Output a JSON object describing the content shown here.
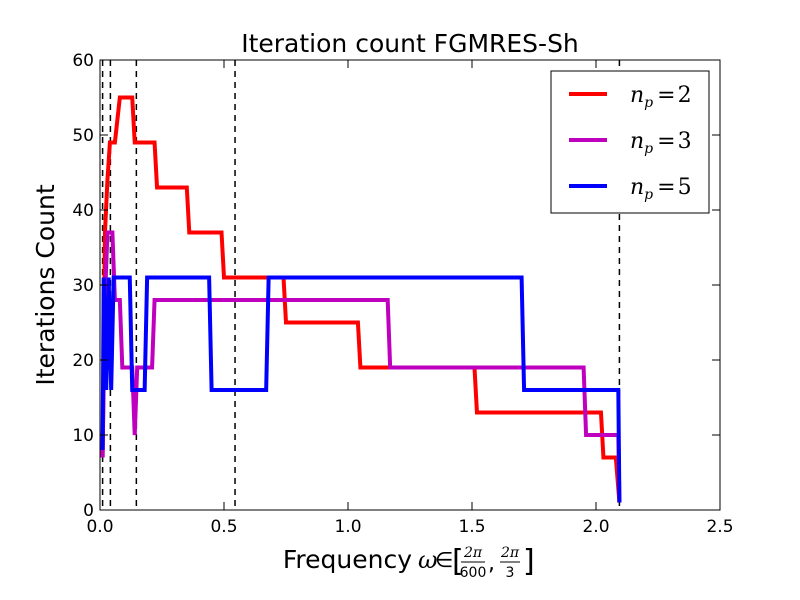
{
  "chart_data": {
    "type": "line",
    "title": "Iteration count FGMRES-Sh",
    "xlabel": "Frequency",
    "xlabel_math": {
      "symbol": "ω",
      "member": "∈",
      "lower_num": "2π",
      "lower_den": "600",
      "upper_num": "2π",
      "upper_den": "3"
    },
    "ylabel": "Iterations Count",
    "xlim": [
      0,
      2.5
    ],
    "ylim": [
      0,
      60
    ],
    "xticks": [
      "0.0",
      "0.5",
      "1.0",
      "1.5",
      "2.0",
      "2.5"
    ],
    "xtick_values": [
      0,
      0.5,
      1.0,
      1.5,
      2.0,
      2.5
    ],
    "yticks": [
      "0",
      "10",
      "20",
      "30",
      "40",
      "50",
      "60"
    ],
    "ytick_values": [
      0,
      10,
      20,
      30,
      40,
      50,
      60
    ],
    "grid": false,
    "legend_position": "top-right",
    "vlines": [
      0.0105,
      0.0419,
      0.1466,
      0.5445,
      2.0944
    ],
    "series": [
      {
        "name_base": "n",
        "name_sub": "p",
        "name_value": "2",
        "color": "#ff0000",
        "x": [
          0.0105,
          0.02,
          0.03,
          0.04,
          0.06,
          0.08,
          0.09,
          0.13,
          0.14,
          0.22,
          0.23,
          0.35,
          0.36,
          0.49,
          0.5,
          0.74,
          0.75,
          1.04,
          1.05,
          1.51,
          1.52,
          2.02,
          2.03,
          2.07,
          2.08,
          2.0944
        ],
        "y": [
          7,
          37,
          44,
          49,
          49,
          55,
          55,
          55,
          49,
          49,
          43,
          43,
          37,
          37,
          31,
          31,
          25,
          25,
          19,
          19,
          13,
          13,
          7,
          7,
          7,
          1
        ]
      },
      {
        "name_base": "n",
        "name_sub": "p",
        "name_value": "3",
        "color": "#bf00bf",
        "x": [
          0.0105,
          0.02,
          0.03,
          0.05,
          0.06,
          0.08,
          0.09,
          0.13,
          0.14,
          0.15,
          0.16,
          0.21,
          0.22,
          1.16,
          1.17,
          1.95,
          1.96,
          2.09,
          2.0944
        ],
        "y": [
          7,
          28,
          37,
          37,
          28,
          28,
          19,
          19,
          10,
          19,
          19,
          19,
          28,
          28,
          19,
          19,
          10,
          10,
          1
        ]
      },
      {
        "name_base": "n",
        "name_sub": "p",
        "name_value": "5",
        "color": "#0000ff",
        "x": [
          0.0105,
          0.015,
          0.025,
          0.035,
          0.045,
          0.055,
          0.06,
          0.12,
          0.13,
          0.18,
          0.19,
          0.44,
          0.45,
          0.67,
          0.68,
          1.7,
          1.71,
          2.09,
          2.0944
        ],
        "y": [
          8,
          31,
          16,
          31,
          16,
          31,
          31,
          31,
          16,
          16,
          31,
          31,
          16,
          16,
          31,
          31,
          16,
          16,
          1
        ]
      }
    ]
  }
}
